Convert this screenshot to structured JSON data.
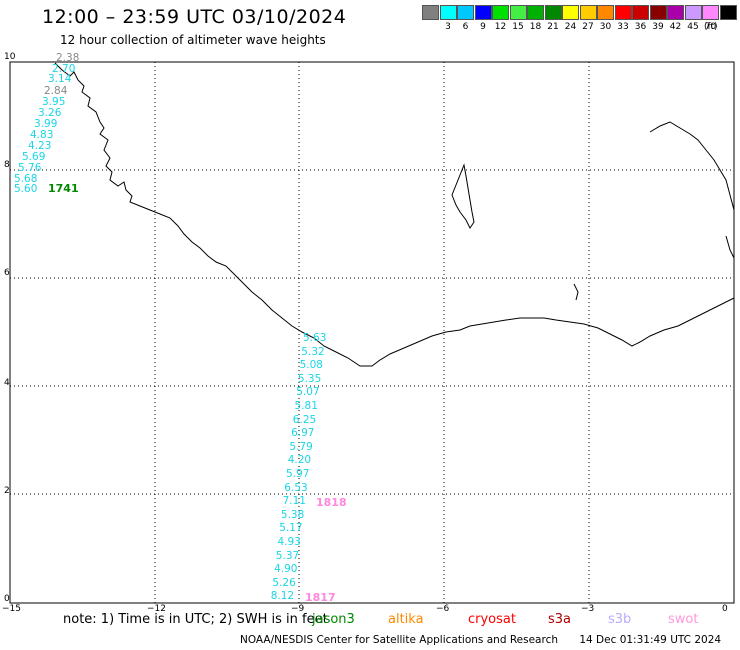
{
  "header": {
    "title": "12:00 – 23:59 UTC 03/10/2024",
    "subtitle": "12 hour collection of altimeter wave heights"
  },
  "legend": {
    "unit": "(ft)",
    "items": [
      {
        "label": "",
        "color": "#808080"
      },
      {
        "label": "3",
        "color": "#00ffff"
      },
      {
        "label": "6",
        "color": "#00c8ff"
      },
      {
        "label": "9",
        "color": "#0000ff"
      },
      {
        "label": "12",
        "color": "#00e000"
      },
      {
        "label": "15",
        "color": "#44ee44"
      },
      {
        "label": "18",
        "color": "#00b000"
      },
      {
        "label": "21",
        "color": "#008800"
      },
      {
        "label": "24",
        "color": "#ffff00"
      },
      {
        "label": "27",
        "color": "#ffcc00"
      },
      {
        "label": "30",
        "color": "#ff8800"
      },
      {
        "label": "33",
        "color": "#ff0000"
      },
      {
        "label": "36",
        "color": "#cc0000"
      },
      {
        "label": "39",
        "color": "#880000"
      },
      {
        "label": "42",
        "color": "#aa00aa"
      },
      {
        "label": "45",
        "color": "#cc99ff"
      },
      {
        "label": "70",
        "color": "#ff88ff"
      },
      {
        "label": "",
        "color": "#000000"
      }
    ]
  },
  "axes": {
    "x_ticks": [
      "−15",
      "−12",
      "−9",
      "−6",
      "−3",
      "0"
    ],
    "y_ticks": [
      "10",
      "8",
      "6",
      "4",
      "2",
      "0"
    ]
  },
  "tracks": {
    "track_a": {
      "pass_label": "1741",
      "pass_color": "#008800",
      "values": [
        "2.38",
        "2.70",
        "3.14",
        "2.84",
        "3.95",
        "3.26",
        "3.99",
        "4.83",
        "4.23",
        "5.69",
        "5.76",
        "5.68",
        "5.60"
      ]
    },
    "track_b": {
      "pass_labels": [
        "1818",
        "1817"
      ],
      "pass_color": "#ff88dd",
      "values": [
        "5.63",
        "5.32",
        "5.08",
        "5.35",
        "5.07",
        "5.81",
        "6.25",
        "6.97",
        "5.79",
        "4.20",
        "5.97",
        "6.53",
        "7.11",
        "5.38",
        "5.17",
        "4.93",
        "5.37",
        "4.90",
        "5.26",
        "8.12"
      ]
    }
  },
  "footer": {
    "note": "note: 1) Time is in UTC; 2) SWH is in feet",
    "satellites": [
      {
        "name": "jason3",
        "color": "#008800"
      },
      {
        "name": "altika",
        "color": "#ff8800"
      },
      {
        "name": "cryosat",
        "color": "#ff0000"
      },
      {
        "name": "s3a",
        "color": "#aa0000"
      },
      {
        "name": "s3b",
        "color": "#bbaaff"
      },
      {
        "name": "swot",
        "color": "#ff99dd"
      }
    ],
    "credit": "NOAA/NESDIS Center for Satellite Applications and Research",
    "timestamp": "14 Dec 01:31:49 UTC 2024"
  }
}
